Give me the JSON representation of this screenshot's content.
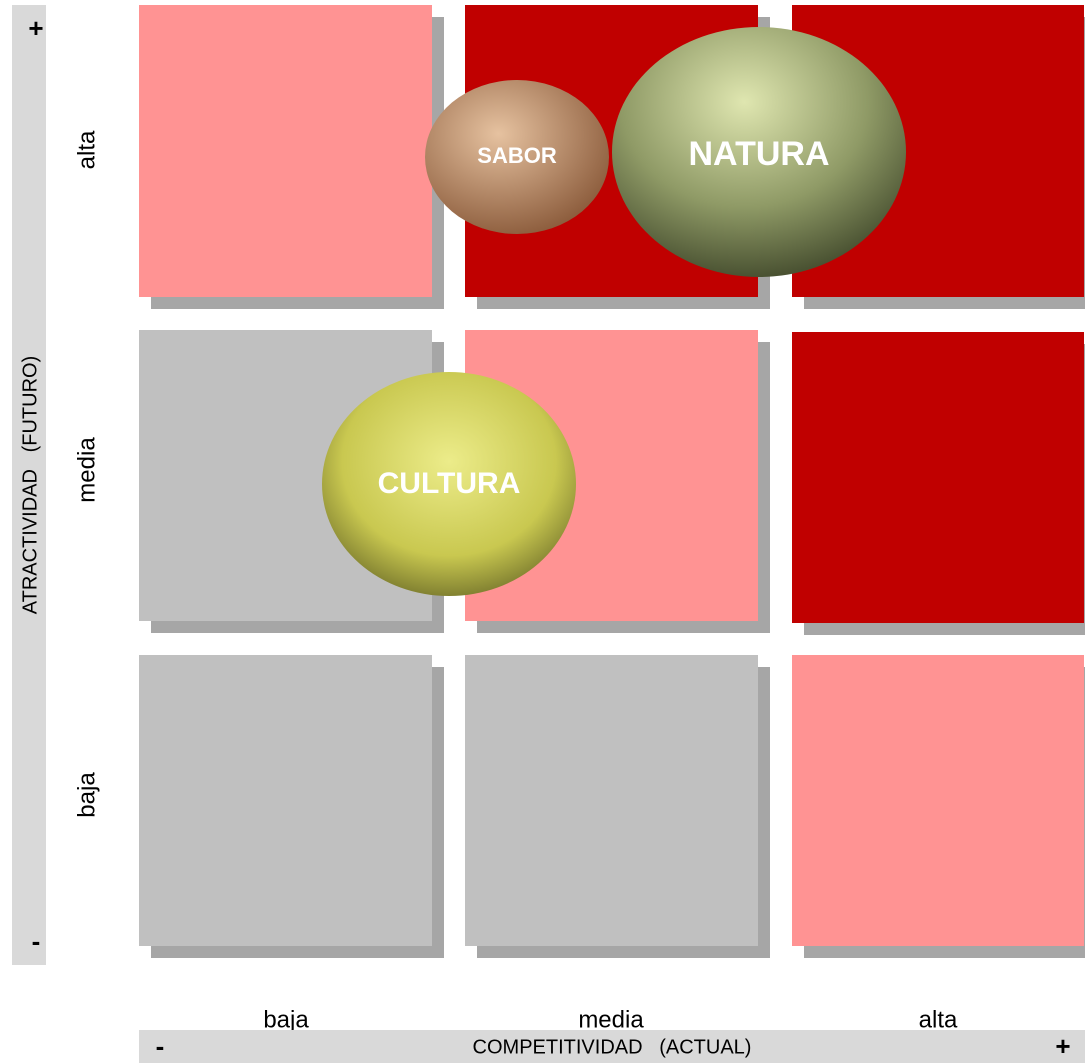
{
  "y_axis": {
    "plus": "+",
    "minus": "-",
    "title": "ATRACTIVIDAD   (FUTURO)",
    "levels": [
      "alta",
      "media",
      "baja"
    ]
  },
  "x_axis": {
    "plus": "+",
    "minus": "-",
    "title": "COMPETITIVIDAD   (ACTUAL)",
    "levels": [
      "baja",
      "media",
      "alta"
    ]
  },
  "bubbles": [
    "SABOR",
    "NATURA",
    "CULTURA"
  ]
}
